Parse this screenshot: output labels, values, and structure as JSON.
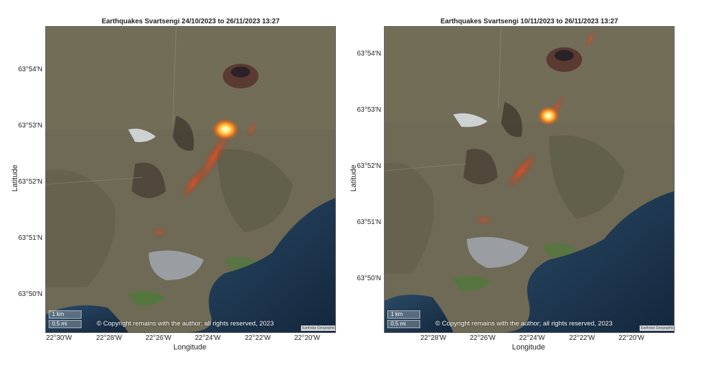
{
  "panels": [
    {
      "title": "Earthquakes Svartsengi 24/10/2023 to 26/11/2023 13:27",
      "yticks": [
        "63°54'N",
        "63°53'N",
        "63°52'N",
        "63°51'N",
        "63°50'N"
      ],
      "xticks": [
        "22°30'W",
        "22°28'W",
        "22°26'W",
        "22°24'W",
        "22°22'W",
        "22°20'W"
      ],
      "xlabel": "Longitude",
      "ylabel": "Latitude",
      "scale_km": "1 km",
      "scale_mi": "0.5 mi",
      "copyright": "© Copyright remains with the author; all rights reserved, 2023",
      "attribution": "Earthstar Geographics"
    },
    {
      "title": "Earthquakes Svartsengi 10/11/2023 to 26/11/2023 13:27",
      "yticks": [
        "63°54'N",
        "63°53'N",
        "63°52'N",
        "63°51'N",
        "63°50'N"
      ],
      "xticks": [
        "22°28'W",
        "22°26'W",
        "22°24'W",
        "22°22'W",
        "22°20'W"
      ],
      "xlabel": "Longitude",
      "ylabel": "Latitude",
      "scale_km": "1 km",
      "scale_mi": "0.5 mi",
      "copyright": "© Copyright remains with the author; all rights reserved, 2023",
      "attribution": "Earthstar Geographics"
    }
  ],
  "colors": {
    "land": "#6e6a55",
    "sea": "#1e3550",
    "town": "#9a9ea2",
    "heat_core": "#fff3a0",
    "heat_mid": "#ff8a1a",
    "heat_outer": "#d6301a"
  }
}
